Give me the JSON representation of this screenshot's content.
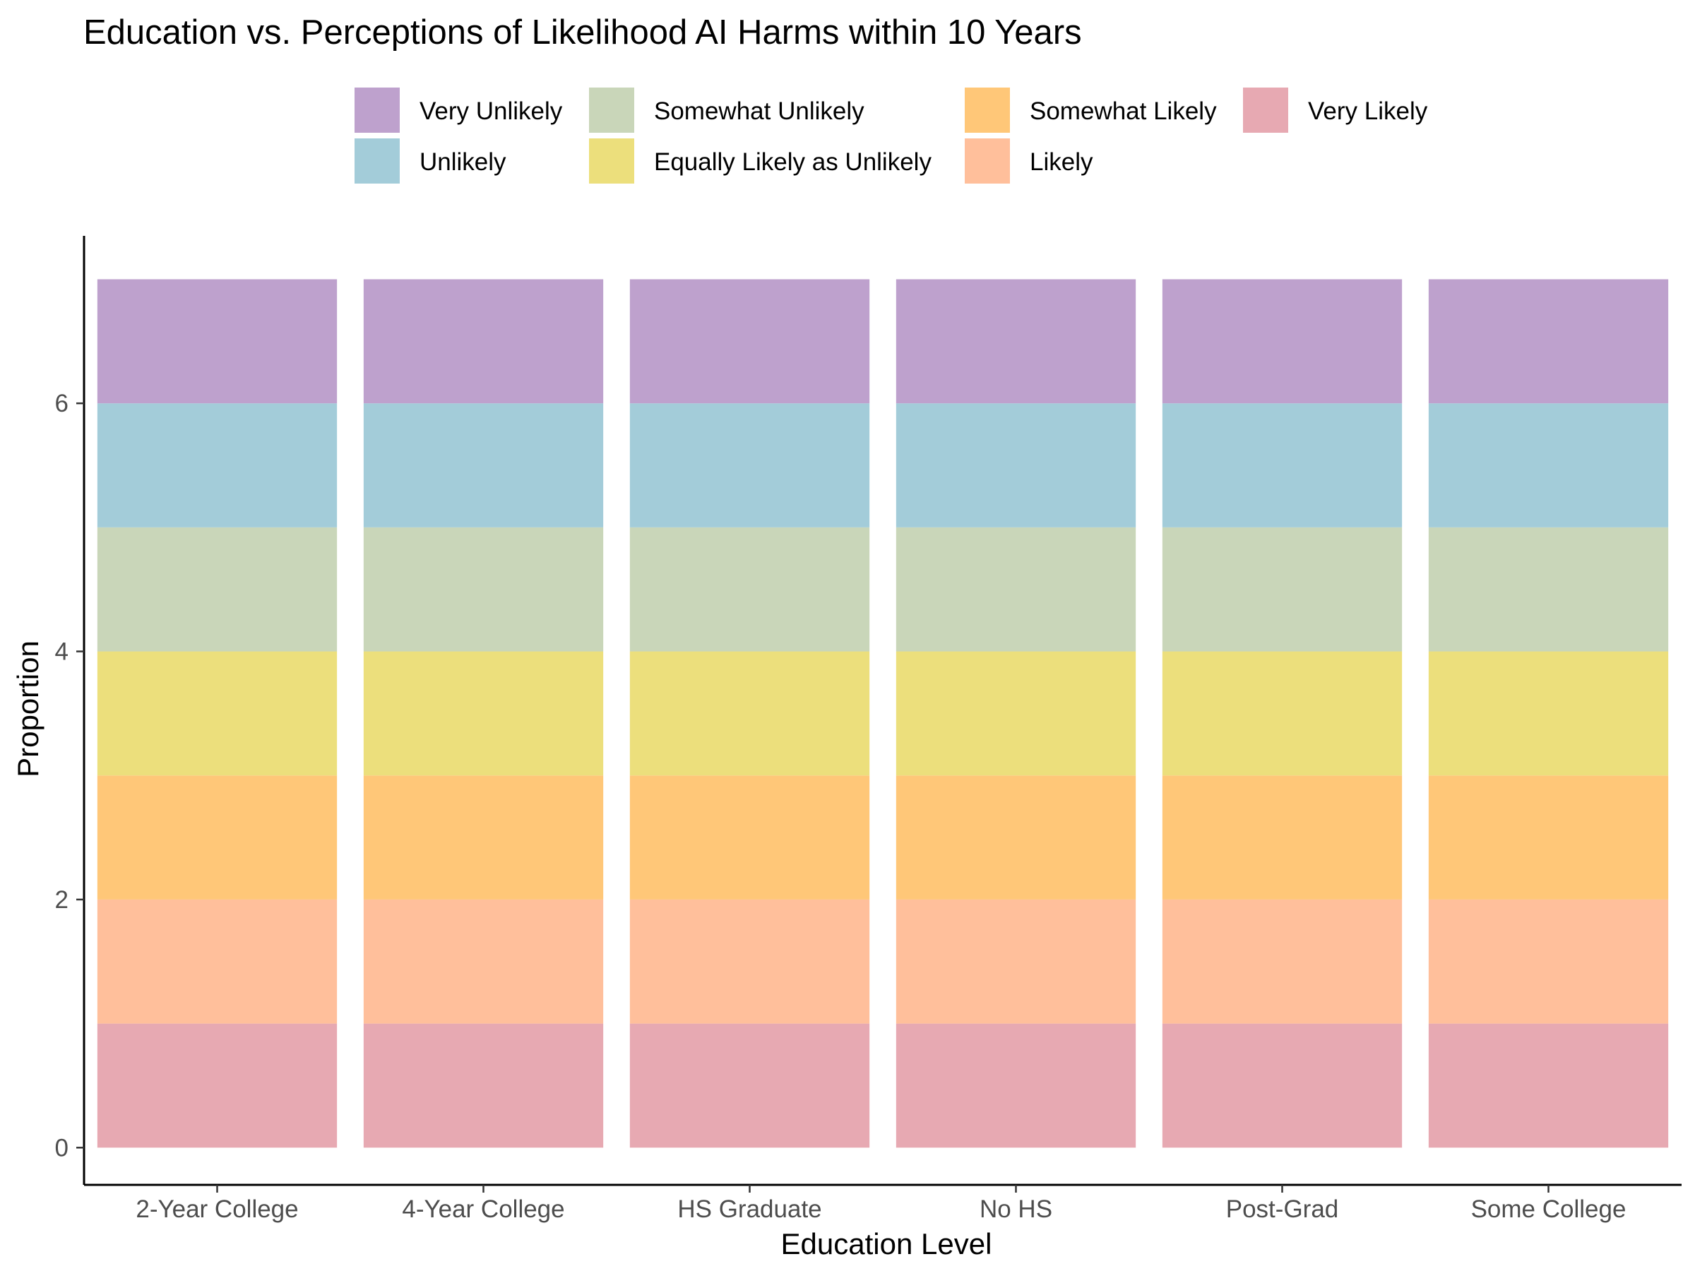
{
  "chart_data": {
    "type": "bar",
    "stacked": true,
    "title": "Education vs. Perceptions of Likelihood AI Harms within 10 Years",
    "xlabel": "Education Level",
    "ylabel": "Proportion",
    "categories": [
      "2-Year College",
      "4-Year College",
      "HS Graduate",
      "No HS",
      "Post-Grad",
      "Some College"
    ],
    "ylim": [
      -0.3,
      7.35
    ],
    "yticks": [
      0,
      2,
      4,
      6
    ],
    "legend_position": "top",
    "series": [
      {
        "name": "Very Likely",
        "color": "#e7a9b2",
        "values": [
          1,
          1,
          1,
          1,
          1,
          1
        ]
      },
      {
        "name": "Likely",
        "color": "#ffbf9b",
        "values": [
          1,
          1,
          1,
          1,
          1,
          1
        ]
      },
      {
        "name": "Somewhat Likely",
        "color": "#ffc778",
        "values": [
          1,
          1,
          1,
          1,
          1,
          1
        ]
      },
      {
        "name": "Equally Likely as Unlikely",
        "color": "#ecdf7c",
        "values": [
          1,
          1,
          1,
          1,
          1,
          1
        ]
      },
      {
        "name": "Somewhat Unlikely",
        "color": "#c9d6b9",
        "values": [
          1,
          1,
          1,
          1,
          1,
          1
        ]
      },
      {
        "name": "Unlikely",
        "color": "#a3ccd9",
        "values": [
          1,
          1,
          1,
          1,
          1,
          1
        ]
      },
      {
        "name": "Very Unlikely",
        "color": "#bea1cd",
        "values": [
          1,
          1,
          1,
          1,
          1,
          1
        ]
      }
    ],
    "legend_order": [
      "Very Unlikely",
      "Unlikely",
      "Somewhat Unlikely",
      "Equally Likely as Unlikely",
      "Somewhat Likely",
      "Likely",
      "Very Likely"
    ]
  }
}
